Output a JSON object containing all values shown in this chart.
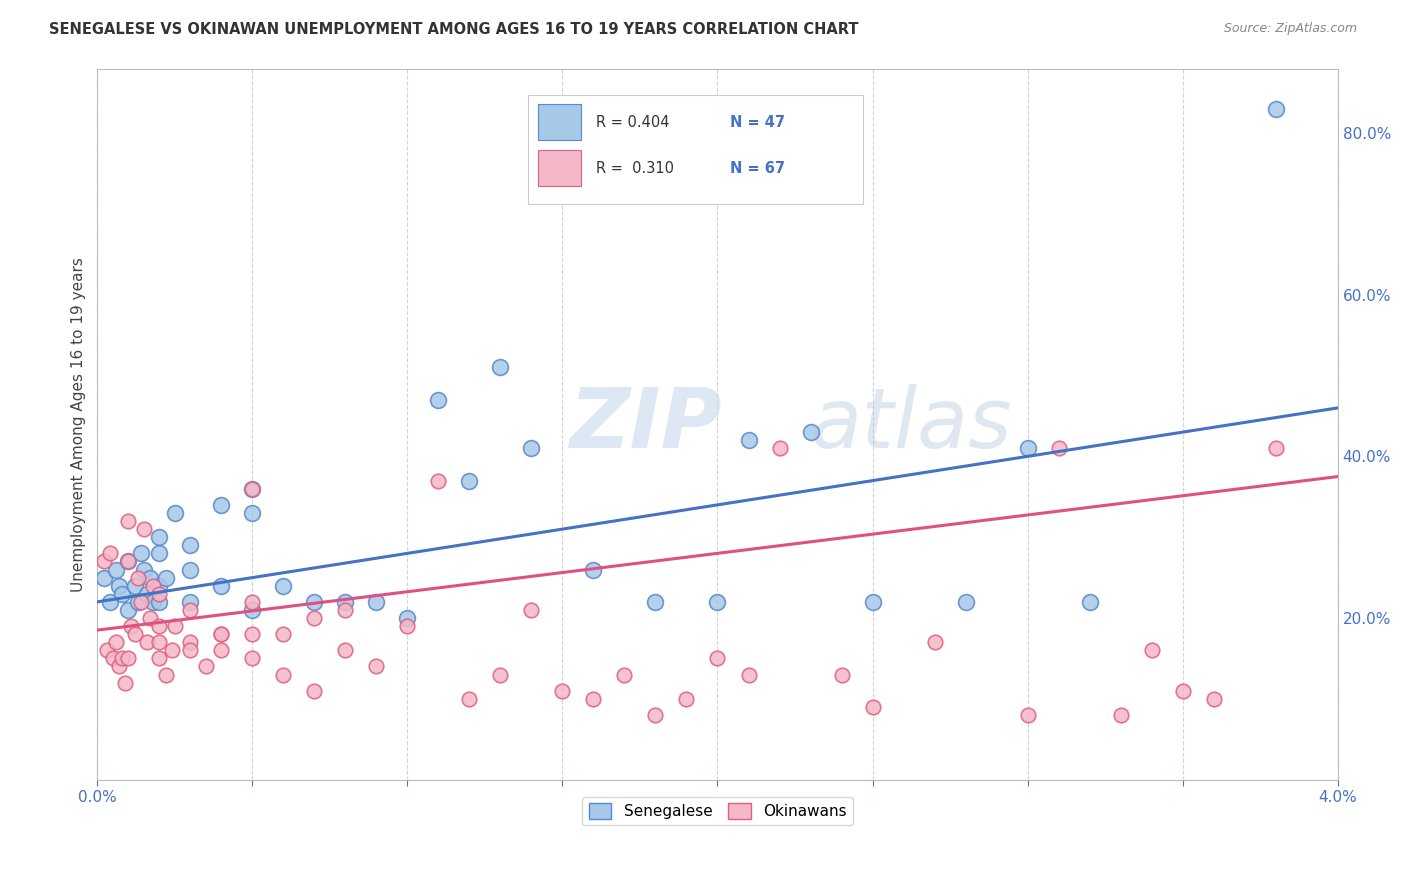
{
  "title": "SENEGALESE VS OKINAWAN UNEMPLOYMENT AMONG AGES 16 TO 19 YEARS CORRELATION CHART",
  "source": "Source: ZipAtlas.com",
  "ylabel": "Unemployment Among Ages 16 to 19 years",
  "right_yticks": [
    0.0,
    0.2,
    0.4,
    0.6,
    0.8
  ],
  "right_yticklabels": [
    "",
    "20.0%",
    "40.0%",
    "60.0%",
    "80.0%"
  ],
  "xlim": [
    0.0,
    0.04
  ],
  "ylim": [
    0.0,
    0.88
  ],
  "legend_blue_R": "R = 0.404",
  "legend_blue_N": "N = 47",
  "legend_pink_R": "R =  0.310",
  "legend_pink_N": "N = 67",
  "blue_color": "#a8c8e8",
  "pink_color": "#f4b8c8",
  "blue_edge_color": "#5588cc",
  "pink_edge_color": "#e06080",
  "blue_line_color": "#4472c4",
  "pink_line_color": "#e05080",
  "watermark_zip": "ZIP",
  "watermark_atlas": "atlas",
  "watermark_color": "#d0dff0",
  "series_label_blue": "Senegalese",
  "series_label_pink": "Okinawans",
  "blue_line_y0": 0.22,
  "blue_line_y1": 0.46,
  "pink_line_y0": 0.185,
  "pink_line_y1": 0.375,
  "blue_scatter_x": [
    0.0002,
    0.0004,
    0.0006,
    0.0007,
    0.0008,
    0.001,
    0.001,
    0.0012,
    0.0013,
    0.0014,
    0.0015,
    0.0016,
    0.0017,
    0.0018,
    0.002,
    0.002,
    0.002,
    0.002,
    0.0022,
    0.0025,
    0.003,
    0.003,
    0.003,
    0.004,
    0.004,
    0.005,
    0.005,
    0.005,
    0.006,
    0.007,
    0.008,
    0.009,
    0.01,
    0.011,
    0.012,
    0.013,
    0.014,
    0.016,
    0.018,
    0.02,
    0.021,
    0.023,
    0.025,
    0.028,
    0.03,
    0.032,
    0.038
  ],
  "blue_scatter_y": [
    0.25,
    0.22,
    0.26,
    0.24,
    0.23,
    0.27,
    0.21,
    0.24,
    0.22,
    0.28,
    0.26,
    0.23,
    0.25,
    0.22,
    0.28,
    0.24,
    0.22,
    0.3,
    0.25,
    0.33,
    0.22,
    0.26,
    0.29,
    0.24,
    0.34,
    0.21,
    0.33,
    0.36,
    0.24,
    0.22,
    0.22,
    0.22,
    0.2,
    0.47,
    0.37,
    0.51,
    0.41,
    0.26,
    0.22,
    0.22,
    0.42,
    0.43,
    0.22,
    0.22,
    0.41,
    0.22,
    0.83
  ],
  "pink_scatter_x": [
    0.0002,
    0.0003,
    0.0004,
    0.0005,
    0.0006,
    0.0007,
    0.0008,
    0.0009,
    0.001,
    0.001,
    0.001,
    0.0011,
    0.0012,
    0.0013,
    0.0014,
    0.0015,
    0.0016,
    0.0017,
    0.0018,
    0.002,
    0.002,
    0.002,
    0.002,
    0.0022,
    0.0024,
    0.0025,
    0.003,
    0.003,
    0.003,
    0.0035,
    0.004,
    0.004,
    0.004,
    0.005,
    0.005,
    0.005,
    0.005,
    0.006,
    0.006,
    0.007,
    0.007,
    0.008,
    0.008,
    0.009,
    0.01,
    0.011,
    0.012,
    0.013,
    0.014,
    0.015,
    0.016,
    0.017,
    0.018,
    0.019,
    0.02,
    0.021,
    0.022,
    0.024,
    0.025,
    0.027,
    0.03,
    0.031,
    0.033,
    0.034,
    0.035,
    0.036,
    0.038
  ],
  "pink_scatter_y": [
    0.27,
    0.16,
    0.28,
    0.15,
    0.17,
    0.14,
    0.15,
    0.12,
    0.27,
    0.15,
    0.32,
    0.19,
    0.18,
    0.25,
    0.22,
    0.31,
    0.17,
    0.2,
    0.24,
    0.19,
    0.23,
    0.15,
    0.17,
    0.13,
    0.16,
    0.19,
    0.17,
    0.21,
    0.16,
    0.14,
    0.18,
    0.16,
    0.18,
    0.36,
    0.18,
    0.22,
    0.15,
    0.18,
    0.13,
    0.2,
    0.11,
    0.16,
    0.21,
    0.14,
    0.19,
    0.37,
    0.1,
    0.13,
    0.21,
    0.11,
    0.1,
    0.13,
    0.08,
    0.1,
    0.15,
    0.13,
    0.41,
    0.13,
    0.09,
    0.17,
    0.08,
    0.41,
    0.08,
    0.16,
    0.11,
    0.1,
    0.41
  ]
}
